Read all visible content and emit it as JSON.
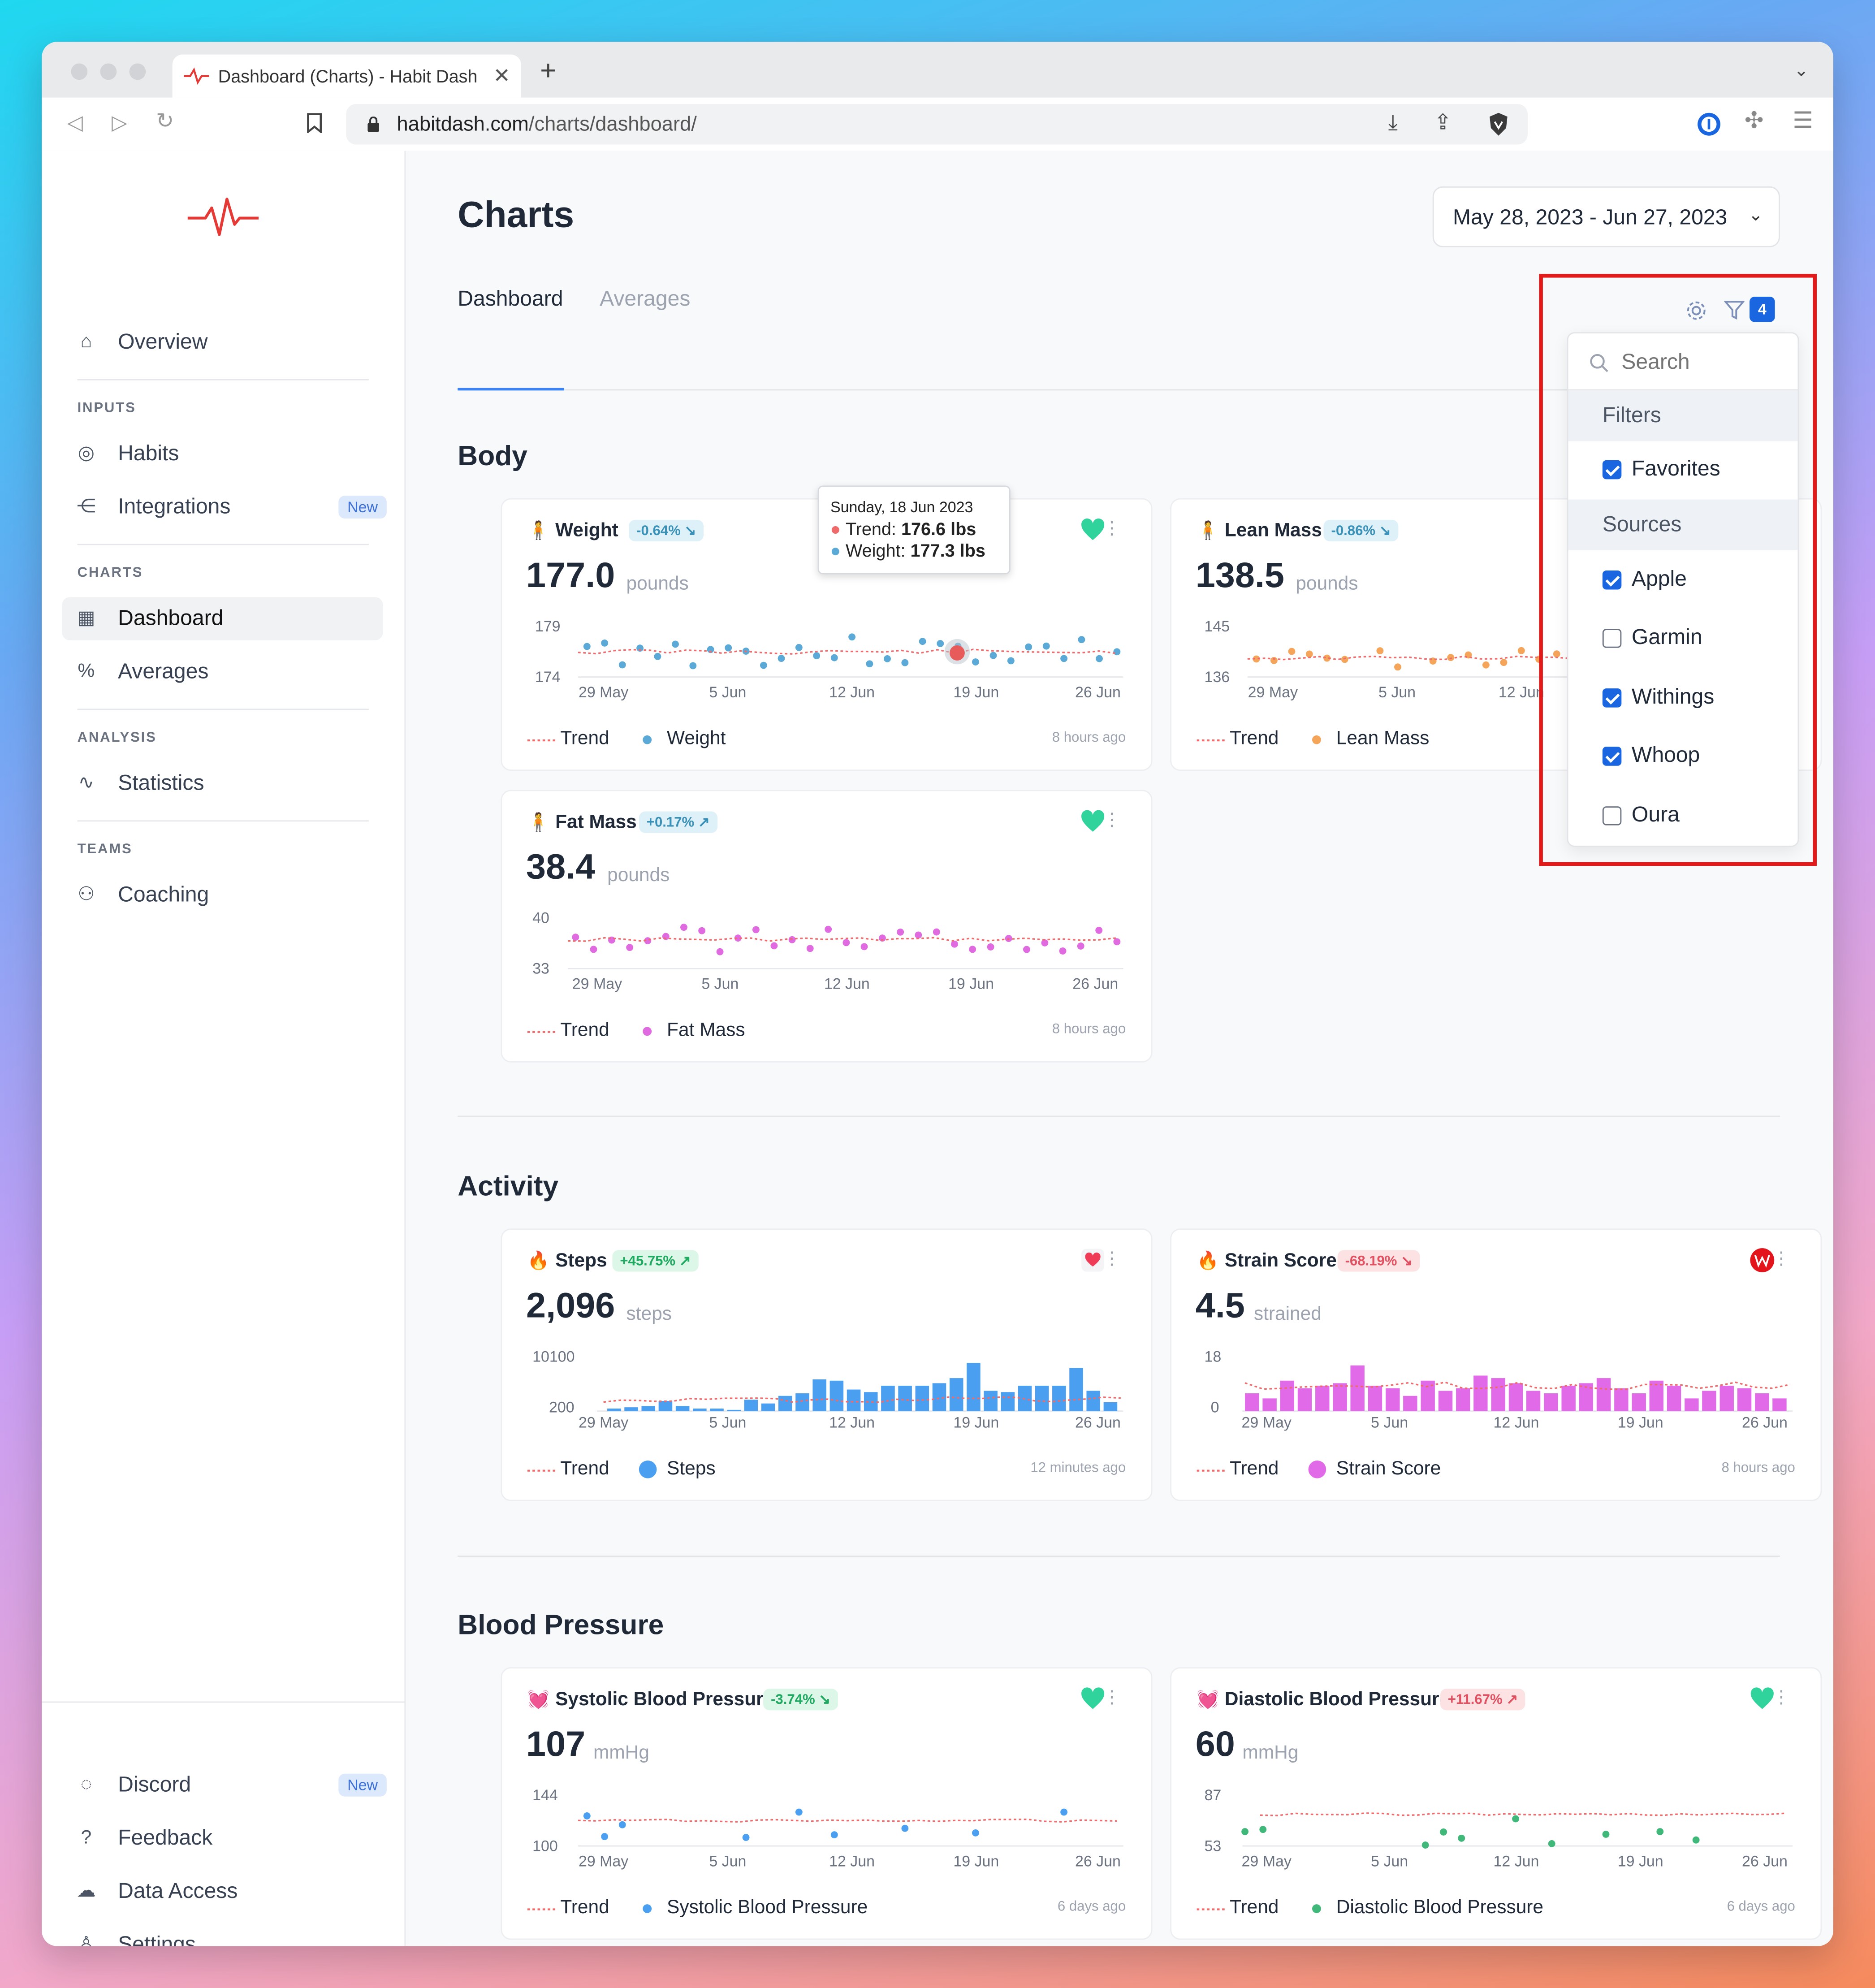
{
  "browser": {
    "tab_title": "Dashboard (Charts) - Habit Dash",
    "url_domain": "habitdash.com",
    "url_path": "/charts/dashboard/"
  },
  "sidebar": {
    "overview": "Overview",
    "inputs_header": "INPUTS",
    "habits": "Habits",
    "integrations": "Integrations",
    "new_badge": "New",
    "charts_header": "CHARTS",
    "dashboard": "Dashboard",
    "averages": "Averages",
    "analysis_header": "ANALYSIS",
    "statistics": "Statistics",
    "teams_header": "TEAMS",
    "coaching": "Coaching",
    "discord": "Discord",
    "feedback": "Feedback",
    "data_access": "Data Access",
    "settings": "Settings"
  },
  "header": {
    "title": "Charts",
    "date_range": "May 28, 2023 - Jun 27, 2023",
    "tab_dashboard": "Dashboard",
    "tab_averages": "Averages",
    "filter_count": "4"
  },
  "filter_dropdown": {
    "search_placeholder": "Search",
    "filters_header": "Filters",
    "sources_header": "Sources",
    "items": [
      {
        "label": "Favorites",
        "checked": true
      },
      {
        "label": "Apple",
        "checked": true
      },
      {
        "label": "Garmin",
        "checked": false
      },
      {
        "label": "Withings",
        "checked": true
      },
      {
        "label": "Whoop",
        "checked": true
      },
      {
        "label": "Oura",
        "checked": false
      }
    ]
  },
  "sections": {
    "body": "Body",
    "activity": "Activity",
    "blood_pressure": "Blood Pressure"
  },
  "tooltip": {
    "date": "Sunday, 18 Jun 2023",
    "trend_label": "Trend:",
    "trend_value": "176.6 lbs",
    "weight_label": "Weight:",
    "weight_value": "177.3 lbs"
  },
  "legend_trend": "Trend",
  "x_ticks": [
    "29 May",
    "5 Jun",
    "12 Jun",
    "19 Jun",
    "26 Jun"
  ],
  "cards": {
    "weight": {
      "title": "Weight",
      "change": "-0.64% ↘",
      "value": "177.0",
      "unit": "pounds",
      "ymax": "179",
      "ymin": "174",
      "legend": "Weight",
      "ago": "8 hours ago",
      "color": "#5aa9d6"
    },
    "lean": {
      "title": "Lean Mass",
      "change": "-0.86% ↘",
      "value": "138.5",
      "unit": "pounds",
      "ymax": "145",
      "ymin": "136",
      "legend": "Lean Mass",
      "color": "#f5a55a"
    },
    "fat": {
      "title": "Fat Mass",
      "change": "+0.17% ↗",
      "value": "38.4",
      "unit": "pounds",
      "ymax": "40",
      "ymin": "33",
      "legend": "Fat Mass",
      "ago": "8 hours ago",
      "color": "#e06ae0"
    },
    "steps": {
      "title": "Steps",
      "change": "+45.75% ↗",
      "value": "2,096",
      "unit": "steps",
      "ymax": "10100",
      "ymin": "200",
      "legend": "Steps",
      "ago": "12 minutes ago",
      "color": "#4a9ff0"
    },
    "strain": {
      "title": "Strain Score",
      "change": "-68.19% ↘",
      "value": "4.5",
      "unit": "strained",
      "ymax": "18",
      "ymin": "0",
      "legend": "Strain Score",
      "ago": "8 hours ago",
      "color": "#e06ae8"
    },
    "systolic": {
      "title": "Systolic Blood Pressure",
      "change": "-3.74% ↘",
      "value": "107",
      "unit": "mmHg",
      "ymax": "144",
      "ymin": "100",
      "legend": "Systolic Blood Pressure",
      "ago": "6 days ago",
      "color": "#4a9ff0"
    },
    "diastolic": {
      "title": "Diastolic Blood Pressure",
      "change": "+11.67% ↗",
      "value": "60",
      "unit": "mmHg",
      "ymax": "87",
      "ymin": "53",
      "legend": "Diastolic Blood Pressure",
      "ago": "6 days ago",
      "color": "#3fb87a"
    }
  }
}
